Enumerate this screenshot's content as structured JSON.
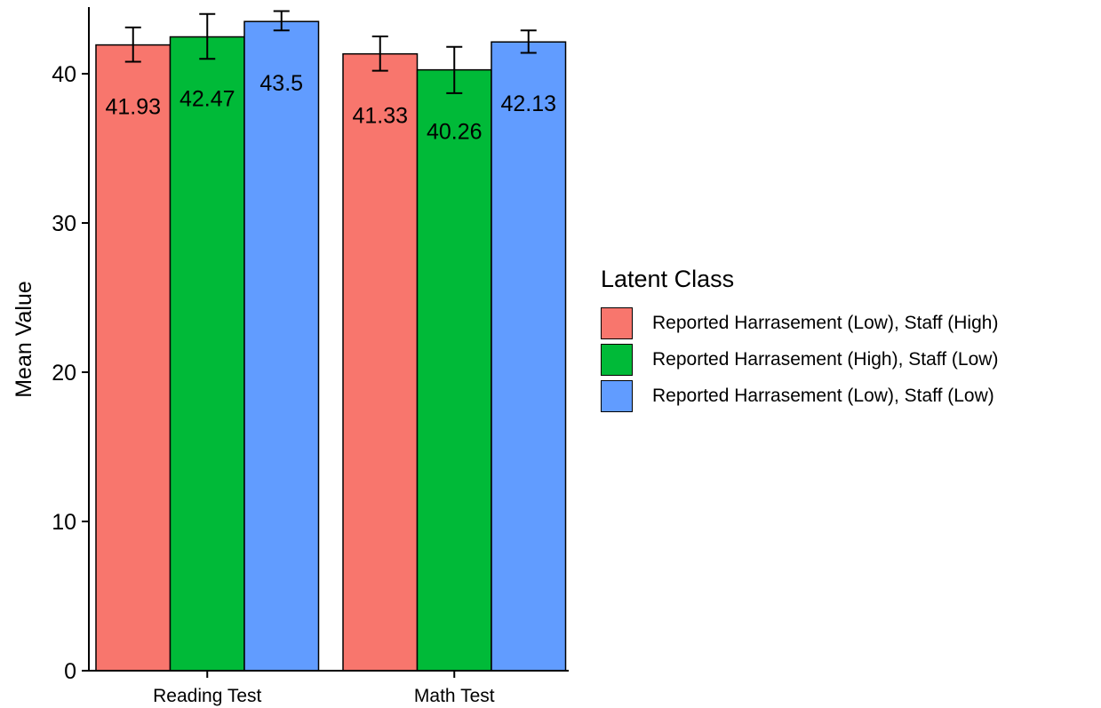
{
  "chart_data": {
    "type": "bar",
    "title": "",
    "xlabel": "",
    "ylabel": "Mean Value",
    "ylim": [
      0,
      44
    ],
    "y_ticks": [
      "0",
      "10",
      "20",
      "30",
      "40"
    ],
    "grid": false,
    "categories": [
      "Reading Test",
      "Math Test"
    ],
    "series": [
      {
        "name": "Reported Harrasement (Low), Staff (High)",
        "color": "#F8766D",
        "values": [
          41.93,
          41.33
        ],
        "value_labels": [
          "41.93",
          "41.33"
        ],
        "error_low": [
          40.8,
          40.2
        ],
        "error_high": [
          43.1,
          42.5
        ]
      },
      {
        "name": "Reported Harrasement (High), Staff (Low)",
        "color": "#00BA38",
        "values": [
          42.47,
          40.26
        ],
        "value_labels": [
          "42.47",
          "40.26"
        ],
        "error_low": [
          41.0,
          38.7
        ],
        "error_high": [
          44.0,
          41.8
        ]
      },
      {
        "name": "Reported Harrasement (Low), Staff (Low)",
        "color": "#619CFF",
        "values": [
          43.5,
          42.13
        ],
        "value_labels": [
          "43.5",
          "42.13"
        ],
        "error_low": [
          42.9,
          41.4
        ],
        "error_high": [
          44.2,
          42.9
        ]
      }
    ],
    "legend": {
      "title": "Latent Class",
      "position": "right"
    }
  }
}
